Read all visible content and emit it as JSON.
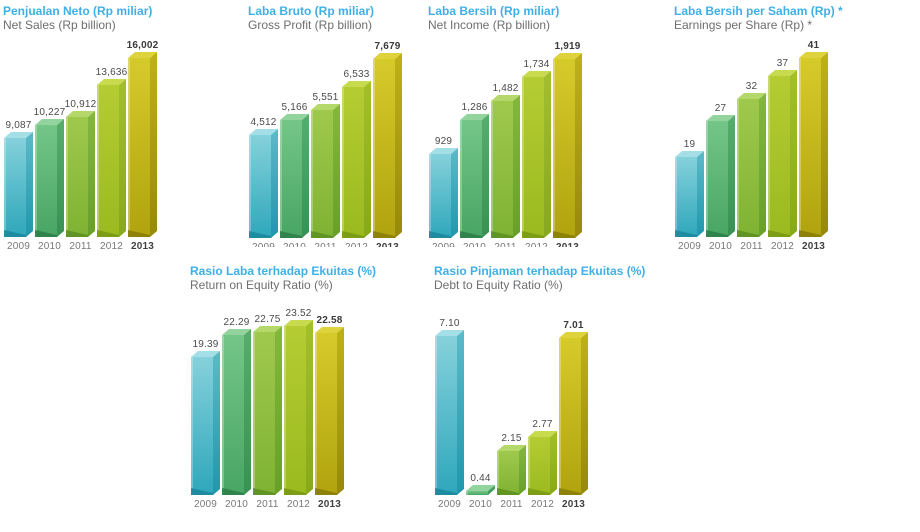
{
  "page": {
    "background": "#ffffff"
  },
  "accent_colors": {
    "title_blue": "#3fb0e5",
    "subtitle_gray": "#6d6e70",
    "value_label": "#4a4b4d",
    "value_label_final": "#3a3a3c",
    "year_label": "#77787b",
    "year_label_final": "#414042"
  },
  "bar_colors": [
    {
      "year": "2009",
      "top": "#a4dee6",
      "front_top": "#85d1db",
      "front_bottom": "#2ea7bb",
      "side_top": "#5cbac8",
      "side_bottom": "#1f97ac",
      "bevel": "#1d889c"
    },
    {
      "year": "2010",
      "top": "#93d49e",
      "front_top": "#74c687",
      "front_bottom": "#48a563",
      "side_top": "#57ad6c",
      "side_bottom": "#389153",
      "bevel": "#2f8049"
    },
    {
      "year": "2011",
      "top": "#b4d86a",
      "front_top": "#9fc94d",
      "front_bottom": "#7fb232",
      "side_top": "#84b83c",
      "side_bottom": "#679f28",
      "bevel": "#5c9122"
    },
    {
      "year": "2012",
      "top": "#c8da4e",
      "front_top": "#b5cc33",
      "front_bottom": "#9aba1f",
      "side_top": "#a3c02a",
      "side_bottom": "#87a81a",
      "bevel": "#7a9a14"
    },
    {
      "year": "2013",
      "top": "#ded23d",
      "front_top": "#d6ca2b",
      "front_bottom": "#b0a30e",
      "side_top": "#bfb117",
      "side_bottom": "#97890a",
      "bevel": "#8a7d07"
    }
  ],
  "chart_data": [
    {
      "type": "bar",
      "title_id": "Penjualan Neto (Rp miliar)",
      "title_en": "Net Sales (Rp billion)",
      "categories": [
        "2009",
        "2010",
        "2011",
        "2012",
        "2013"
      ],
      "values": [
        9087,
        10227,
        10912,
        13636,
        16002
      ],
      "value_labels": [
        "9,087",
        "10,227",
        "10,912",
        "13,636",
        "16,002"
      ],
      "ylim": [
        0,
        16002
      ],
      "bold_category": "2013",
      "grid": false,
      "legend": "none"
    },
    {
      "type": "bar",
      "title_id": "Laba Bruto (Rp miliar)",
      "title_en": "Gross Profit (Rp billion)",
      "categories": [
        "2009",
        "2010",
        "2011",
        "2012",
        "2013"
      ],
      "values": [
        4512,
        5166,
        5551,
        6533,
        7679
      ],
      "value_labels": [
        "4,512",
        "5,166",
        "5,551",
        "6,533",
        "7,679"
      ],
      "ylim": [
        0,
        7679
      ],
      "bold_category": "2013",
      "grid": false,
      "legend": "none"
    },
    {
      "type": "bar",
      "title_id": "Laba Bersih (Rp miliar)",
      "title_en": "Net Income (Rp billion)",
      "categories": [
        "2009",
        "2010",
        "2011",
        "2012",
        "2013"
      ],
      "values": [
        929,
        1286,
        1482,
        1734,
        1919
      ],
      "value_labels": [
        "929",
        "1,286",
        "1,482",
        "1,734",
        "1,919"
      ],
      "ylim": [
        0,
        1919
      ],
      "bold_category": "2013",
      "grid": false,
      "legend": "none"
    },
    {
      "type": "bar",
      "title_id": "Laba Bersih per Saham (Rp) *",
      "title_en": "Earnings per Share (Rp) *",
      "categories": [
        "2009",
        "2010",
        "2011",
        "2012",
        "2013"
      ],
      "values": [
        19,
        27,
        32,
        37,
        41
      ],
      "value_labels": [
        "19",
        "27",
        "32",
        "37",
        "41"
      ],
      "ylim": [
        0,
        41
      ],
      "bold_category": "2013",
      "grid": false,
      "legend": "none"
    },
    {
      "type": "bar",
      "title_id": "Rasio Laba terhadap Ekuitas (%)",
      "title_en": "Return on Equity Ratio (%)",
      "categories": [
        "2009",
        "2010",
        "2011",
        "2012",
        "2013"
      ],
      "values": [
        19.39,
        22.29,
        22.75,
        23.52,
        22.58
      ],
      "value_labels": [
        "19.39",
        "22.29",
        "22.75",
        "23.52",
        "22.58"
      ],
      "ylim": [
        0,
        23.52
      ],
      "bold_category": "2013",
      "grid": false,
      "legend": "none"
    },
    {
      "type": "bar",
      "title_id": "Rasio Pinjaman terhadap Ekuitas (%)",
      "title_en": "Debt to Equity Ratio (%)",
      "categories": [
        "2009",
        "2010",
        "2011",
        "2012",
        "2013"
      ],
      "values": [
        7.1,
        0.44,
        2.15,
        2.77,
        7.01
      ],
      "value_labels": [
        "7.10",
        "0.44",
        "2.15",
        "2.77",
        "7.01"
      ],
      "ylim": [
        0,
        7.1
      ],
      "bold_category": "2013",
      "grid": false,
      "legend": "none"
    }
  ]
}
